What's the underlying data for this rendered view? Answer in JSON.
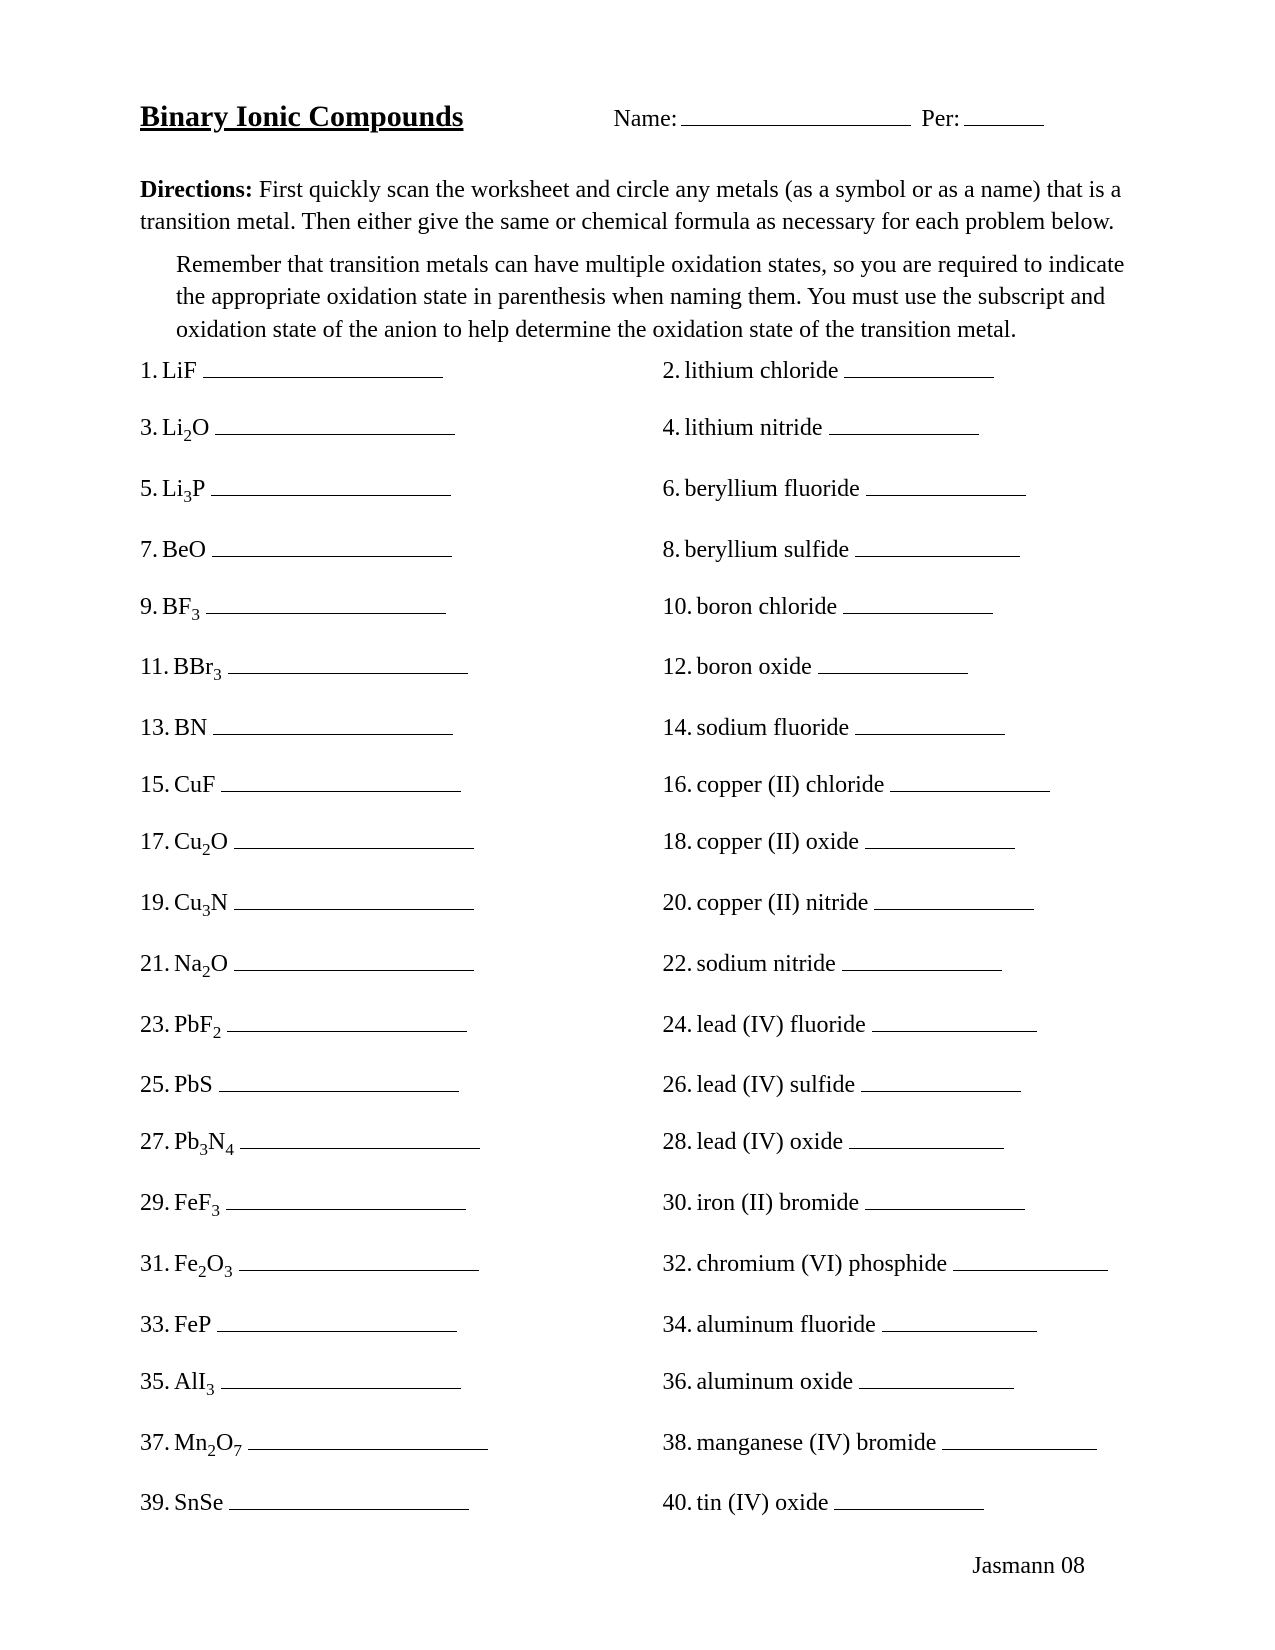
{
  "header": {
    "title": "Binary Ionic Compounds",
    "name_label": "Name:",
    "per_label": "Per:"
  },
  "directions": {
    "label": "Directions:",
    "text": "First quickly scan the worksheet and circle any metals (as a symbol or as a name) that is a transition metal.  Then either give the same or chemical formula as necessary for each problem below.",
    "indented": "Remember that transition metals can have multiple oxidation states, so you are required to indicate the appropriate oxidation state in parenthesis when naming them. You must use the subscript and oxidation state of the anion to help determine the oxidation state of the transition metal."
  },
  "problems": [
    {
      "num": "1.",
      "formula": [
        [
          "LiF",
          ""
        ]
      ],
      "line": 240,
      "right": false
    },
    {
      "num": "2.",
      "text": "lithium chloride",
      "line": 150,
      "right": true
    },
    {
      "num": "3.",
      "formula": [
        [
          "Li",
          "2"
        ],
        [
          "O",
          ""
        ]
      ],
      "line": 240,
      "right": false
    },
    {
      "num": "4.",
      "text": "lithium nitride",
      "line": 150,
      "right": true
    },
    {
      "num": "5.",
      "formula": [
        [
          "Li",
          "3"
        ],
        [
          "P",
          ""
        ]
      ],
      "line": 240,
      "right": false
    },
    {
      "num": "6.",
      "text": "beryllium fluoride",
      "line": 160,
      "right": true
    },
    {
      "num": "7.",
      "formula": [
        [
          " BeO",
          ""
        ]
      ],
      "line": 240,
      "right": false
    },
    {
      "num": "8.",
      "text": "beryllium sulfide",
      "line": 165,
      "right": true
    },
    {
      "num": "9.",
      "formula": [
        [
          "BF",
          "3"
        ]
      ],
      "line": 240,
      "right": false
    },
    {
      "num": "10.",
      "text": " boron chloride",
      "line": 150,
      "right": true
    },
    {
      "num": "11.",
      "formula": [
        [
          "BBr",
          "3"
        ]
      ],
      "line": 240,
      "right": false
    },
    {
      "num": "12.",
      "text": "boron oxide",
      "line": 150,
      "right": true
    },
    {
      "num": "13.",
      "formula": [
        [
          " BN",
          ""
        ]
      ],
      "line": 240,
      "right": false
    },
    {
      "num": "14.",
      "text": "sodium fluoride",
      "line": 150,
      "right": true
    },
    {
      "num": "15.",
      "formula": [
        [
          "CuF",
          ""
        ]
      ],
      "line": 240,
      "right": false
    },
    {
      "num": "16.",
      "text": "copper (II) chloride",
      "line": 160,
      "right": true
    },
    {
      "num": "17.",
      "formula": [
        [
          "Cu",
          "2"
        ],
        [
          "O",
          ""
        ]
      ],
      "line": 240,
      "right": false
    },
    {
      "num": "18.",
      "text": "copper (II) oxide",
      "line": 150,
      "right": true
    },
    {
      "num": "19.",
      "formula": [
        [
          "Cu",
          "3"
        ],
        [
          "N",
          ""
        ]
      ],
      "line": 240,
      "right": false
    },
    {
      "num": "20.",
      "text": "copper (II) nitride",
      "line": 160,
      "right": true
    },
    {
      "num": "21.",
      "formula": [
        [
          "Na",
          "2"
        ],
        [
          "O",
          ""
        ]
      ],
      "line": 240,
      "right": false
    },
    {
      "num": "22.",
      "text": "sodium nitride",
      "line": 160,
      "right": true
    },
    {
      "num": "23.",
      "formula": [
        [
          "PbF",
          "2"
        ]
      ],
      "line": 240,
      "right": false
    },
    {
      "num": "24.",
      "text": "lead (IV) fluoride",
      "line": 165,
      "right": true
    },
    {
      "num": "25.",
      "formula": [
        [
          "PbS",
          ""
        ]
      ],
      "line": 240,
      "right": false
    },
    {
      "num": "26.",
      "text": "lead (IV) sulfide",
      "line": 160,
      "right": true
    },
    {
      "num": "27.",
      "formula": [
        [
          "Pb",
          "3"
        ],
        [
          "N",
          "4"
        ]
      ],
      "line": 240,
      "right": false
    },
    {
      "num": "28.",
      "text": "lead (IV) oxide",
      "line": 155,
      "right": true
    },
    {
      "num": "29.",
      "formula": [
        [
          "FeF",
          "3"
        ]
      ],
      "line": 240,
      "right": false
    },
    {
      "num": "30.",
      "text": "iron (II) bromide",
      "line": 160,
      "right": true
    },
    {
      "num": "31.",
      "formula": [
        [
          "Fe",
          "2"
        ],
        [
          "O",
          "3"
        ]
      ],
      "line": 240,
      "right": false
    },
    {
      "num": "32.",
      "text": "chromium (VI) phosphide",
      "line": 155,
      "right": true
    },
    {
      "num": "33.",
      "formula": [
        [
          "FeP",
          ""
        ]
      ],
      "line": 240,
      "right": false
    },
    {
      "num": "34.",
      "text": "aluminum fluoride",
      "line": 155,
      "right": true
    },
    {
      "num": "35.",
      "formula": [
        [
          "AlI",
          "3"
        ]
      ],
      "line": 240,
      "right": false
    },
    {
      "num": "36.",
      "text": "aluminum oxide",
      "line": 155,
      "right": true
    },
    {
      "num": "37.",
      "formula": [
        [
          "Mn",
          "2"
        ],
        [
          "O",
          "7"
        ]
      ],
      "line": 240,
      "right": false
    },
    {
      "num": "38.",
      "text": "manganese (IV) bromide",
      "line": 155,
      "right": true
    },
    {
      "num": "39.",
      "formula": [
        [
          "SnSe",
          ""
        ]
      ],
      "line": 240,
      "right": false
    },
    {
      "num": "40.",
      "text": "tin (IV) oxide",
      "line": 150,
      "right": true
    }
  ],
  "footer": "Jasmann 08"
}
